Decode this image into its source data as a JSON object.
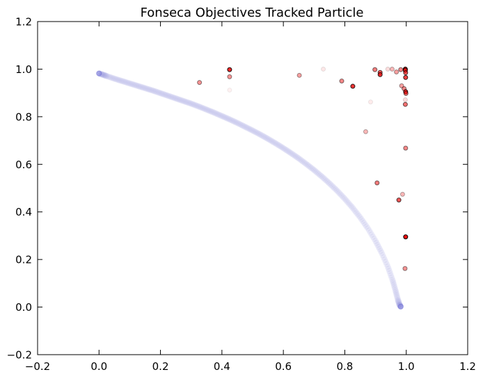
{
  "chart_data": {
    "type": "scatter",
    "title": "Fonseca Objectives Tracked Particle",
    "xlabel": "",
    "ylabel": "",
    "xlim": [
      -0.2,
      1.2
    ],
    "ylim": [
      -0.2,
      1.2
    ],
    "xticks": [
      -0.2,
      0.0,
      0.2,
      0.4,
      0.6,
      0.8,
      1.0,
      1.2
    ],
    "yticks": [
      -0.2,
      0.0,
      0.2,
      0.4,
      0.6,
      0.8,
      1.0,
      1.2
    ],
    "xtick_labels": [
      "−0.2",
      "0.0",
      "0.2",
      "0.4",
      "0.6",
      "0.8",
      "1.0",
      "1.2"
    ],
    "ytick_labels": [
      "−0.2",
      "0.0",
      "0.2",
      "0.4",
      "0.6",
      "0.8",
      "1.0",
      "1.2"
    ],
    "grid": false,
    "colors": {
      "front": "#6f6fd6",
      "particle": "#ee1111",
      "edge": "#000000"
    },
    "series": [
      {
        "role": "pareto-front",
        "points": [
          [
            0.0,
            0.982
          ],
          [
            0.012,
            0.977
          ],
          [
            0.025,
            0.971
          ],
          [
            0.05,
            0.96
          ],
          [
            0.075,
            0.95
          ],
          [
            0.1,
            0.94
          ],
          [
            0.125,
            0.93
          ],
          [
            0.15,
            0.92
          ],
          [
            0.175,
            0.91
          ],
          [
            0.2,
            0.899
          ],
          [
            0.225,
            0.888
          ],
          [
            0.25,
            0.877
          ],
          [
            0.275,
            0.866
          ],
          [
            0.3,
            0.855
          ],
          [
            0.325,
            0.843
          ],
          [
            0.35,
            0.83
          ],
          [
            0.375,
            0.817
          ],
          [
            0.4,
            0.803
          ],
          [
            0.425,
            0.789
          ],
          [
            0.45,
            0.774
          ],
          [
            0.475,
            0.758
          ],
          [
            0.5,
            0.742
          ],
          [
            0.525,
            0.725
          ],
          [
            0.55,
            0.707
          ],
          [
            0.575,
            0.688
          ],
          [
            0.6,
            0.668
          ],
          [
            0.625,
            0.647
          ],
          [
            0.65,
            0.625
          ],
          [
            0.675,
            0.601
          ],
          [
            0.7,
            0.576
          ],
          [
            0.725,
            0.549
          ],
          [
            0.75,
            0.52
          ],
          [
            0.775,
            0.489
          ],
          [
            0.8,
            0.455
          ],
          [
            0.825,
            0.418
          ],
          [
            0.85,
            0.377
          ],
          [
            0.875,
            0.331
          ],
          [
            0.9,
            0.278
          ],
          [
            0.92,
            0.228
          ],
          [
            0.94,
            0.17
          ],
          [
            0.955,
            0.115
          ],
          [
            0.965,
            0.07
          ],
          [
            0.973,
            0.03
          ],
          [
            0.978,
            0.01
          ],
          [
            0.982,
            0.002
          ]
        ]
      },
      {
        "role": "tracked-particle",
        "points": [
          {
            "x": 0.425,
            "y": 0.998,
            "a": 0.9
          },
          {
            "x": 0.425,
            "y": 0.968,
            "a": 0.45
          },
          {
            "x": 0.425,
            "y": 0.912,
            "a": 0.06
          },
          {
            "x": 0.327,
            "y": 0.944,
            "a": 0.45
          },
          {
            "x": 0.652,
            "y": 0.974,
            "a": 0.4
          },
          {
            "x": 0.73,
            "y": 1.0,
            "a": 0.1
          },
          {
            "x": 0.79,
            "y": 0.95,
            "a": 0.5
          },
          {
            "x": 0.826,
            "y": 0.928,
            "a": 0.85
          },
          {
            "x": 0.884,
            "y": 0.862,
            "a": 0.08
          },
          {
            "x": 0.868,
            "y": 0.737,
            "a": 0.3
          },
          {
            "x": 0.898,
            "y": 0.998,
            "a": 0.55
          },
          {
            "x": 0.915,
            "y": 0.986,
            "a": 0.7
          },
          {
            "x": 0.915,
            "y": 0.977,
            "a": 0.85
          },
          {
            "x": 0.94,
            "y": 1.0,
            "a": 0.15
          },
          {
            "x": 0.954,
            "y": 1.0,
            "a": 0.3
          },
          {
            "x": 0.968,
            "y": 0.988,
            "a": 0.4
          },
          {
            "x": 0.982,
            "y": 0.998,
            "a": 0.5
          },
          {
            "x": 0.985,
            "y": 0.93,
            "a": 0.4
          },
          {
            "x": 0.993,
            "y": 0.918,
            "a": 0.5
          },
          {
            "x": 0.997,
            "y": 1.0,
            "a": 1.0
          },
          {
            "x": 0.997,
            "y": 0.995,
            "a": 0.9
          },
          {
            "x": 0.998,
            "y": 0.985,
            "a": 0.7
          },
          {
            "x": 0.998,
            "y": 0.965,
            "a": 0.8
          },
          {
            "x": 0.998,
            "y": 0.905,
            "a": 0.9
          },
          {
            "x": 0.999,
            "y": 0.898,
            "a": 0.6
          },
          {
            "x": 0.997,
            "y": 0.871,
            "a": 0.15
          },
          {
            "x": 0.997,
            "y": 0.852,
            "a": 0.6
          },
          {
            "x": 0.905,
            "y": 0.522,
            "a": 0.55
          },
          {
            "x": 0.998,
            "y": 0.668,
            "a": 0.5
          },
          {
            "x": 0.988,
            "y": 0.474,
            "a": 0.3
          },
          {
            "x": 0.976,
            "y": 0.45,
            "a": 0.7
          },
          {
            "x": 0.998,
            "y": 0.295,
            "a": 1.0
          },
          {
            "x": 0.996,
            "y": 0.162,
            "a": 0.45
          }
        ]
      }
    ]
  }
}
